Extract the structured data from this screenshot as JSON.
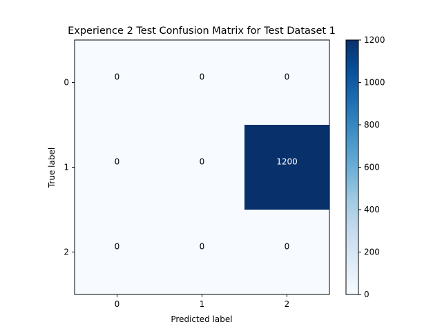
{
  "chart_data": {
    "type": "heatmap",
    "title": "Experience 2 Test Confusion Matrix for Test Dataset 1",
    "xlabel": "Predicted label",
    "ylabel": "True label",
    "x_categories": [
      "0",
      "1",
      "2"
    ],
    "y_categories": [
      "0",
      "1",
      "2"
    ],
    "matrix": [
      [
        0,
        0,
        0
      ],
      [
        0,
        0,
        1200
      ],
      [
        0,
        0,
        0
      ]
    ],
    "colormap": "Blues",
    "color_range": [
      0,
      1200
    ],
    "colorbar": {
      "ticks": [
        0,
        200,
        400,
        600,
        800,
        1000,
        1200
      ],
      "tick_labels": [
        "0",
        "200",
        "400",
        "600",
        "800",
        "1000",
        "1200"
      ]
    },
    "cell_text_colors": {
      "dark_background": "#ffffff",
      "light_background": "#000000"
    },
    "grid": false
  }
}
